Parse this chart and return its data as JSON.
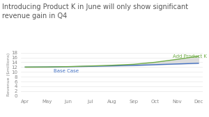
{
  "title": "Introducing Product K in June will only show significant\nrevenue gain in Q4",
  "months": [
    "Apr",
    "May",
    "Jun",
    "Jul",
    "Aug",
    "Sep",
    "Oct",
    "Nov",
    "Dec"
  ],
  "base_case": [
    12.0,
    12.05,
    12.15,
    12.3,
    12.5,
    12.7,
    13.0,
    13.3,
    13.6
  ],
  "add_product": [
    12.0,
    12.05,
    12.2,
    12.45,
    12.75,
    13.15,
    14.0,
    15.2,
    16.5
  ],
  "ylabel": "Revenue ($millions)",
  "ylim": [
    0,
    18
  ],
  "yticks": [
    0,
    2,
    4,
    6,
    8,
    10,
    12,
    14,
    16,
    18
  ],
  "base_color": "#4472C4",
  "product_color": "#70AD47",
  "shade_color": "#DCDCDC",
  "base_label": "Base Case",
  "product_label": "Add Product K",
  "title_fontsize": 7.0,
  "label_fontsize": 5.0,
  "tick_fontsize": 5.0,
  "ylabel_fontsize": 4.5,
  "background_color": "#FFFFFF"
}
